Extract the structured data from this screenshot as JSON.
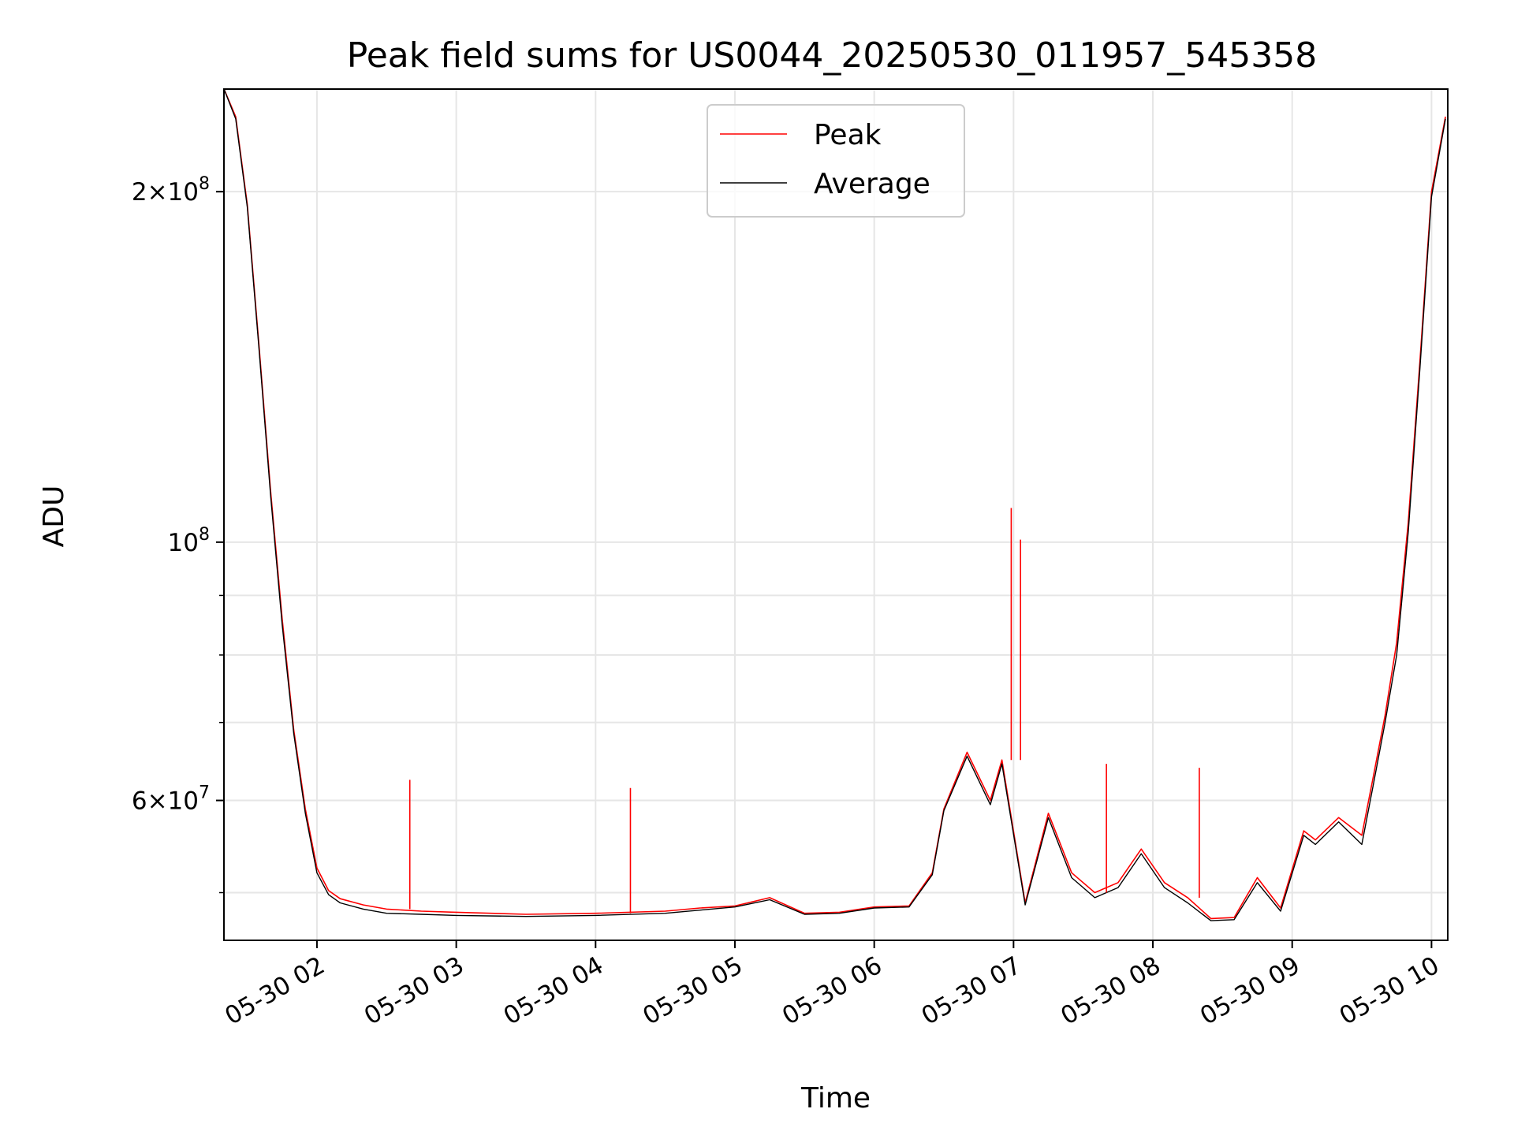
{
  "chart_data": {
    "type": "line",
    "title": "Peak field sums for US0044_20250530_011957_545358",
    "xlabel": "Time",
    "ylabel": "ADU",
    "y_scale": "log",
    "ylim": [
      45500000,
      245000000
    ],
    "xlim": [
      "05-30 01:19:57",
      "05-30 10:07:00"
    ],
    "grid": true,
    "legend_position": "top-center",
    "x_ticks": [
      {
        "time": "05-30 02:00",
        "label": "05-30 02"
      },
      {
        "time": "05-30 03:00",
        "label": "05-30 03"
      },
      {
        "time": "05-30 04:00",
        "label": "05-30 04"
      },
      {
        "time": "05-30 05:00",
        "label": "05-30 05"
      },
      {
        "time": "05-30 06:00",
        "label": "05-30 06"
      },
      {
        "time": "05-30 07:00",
        "label": "05-30 07"
      },
      {
        "time": "05-30 08:00",
        "label": "05-30 08"
      },
      {
        "time": "05-30 09:00",
        "label": "05-30 09"
      },
      {
        "time": "05-30 10:00",
        "label": "05-30 10"
      }
    ],
    "y_ticks_major": [
      {
        "value": 200000000,
        "mantissa": "2",
        "exponent": "8"
      },
      {
        "value": 100000000,
        "mantissa": "",
        "exponent": "8"
      },
      {
        "value": 60000000,
        "mantissa": "6",
        "exponent": "7"
      }
    ],
    "y_ticks_minor": [
      50000000,
      70000000,
      80000000,
      90000000
    ],
    "series": [
      {
        "name": "Peak",
        "color": "#ff0000",
        "x": [
          "05-30 01:20",
          "05-30 01:25",
          "05-30 01:30",
          "05-30 01:35",
          "05-30 01:40",
          "05-30 01:45",
          "05-30 01:50",
          "05-30 01:55",
          "05-30 02:00",
          "05-30 02:05",
          "05-30 02:10",
          "05-30 02:20",
          "05-30 02:30",
          "05-30 02:45",
          "05-30 03:00",
          "05-30 03:30",
          "05-30 04:00",
          "05-30 04:30",
          "05-30 04:45",
          "05-30 05:00",
          "05-30 05:15",
          "05-30 05:30",
          "05-30 05:45",
          "05-30 06:00",
          "05-30 06:15",
          "05-30 06:25",
          "05-30 06:30",
          "05-30 06:40",
          "05-30 06:50",
          "05-30 06:55",
          "05-30 07:05",
          "05-30 07:15",
          "05-30 07:25",
          "05-30 07:35",
          "05-30 07:45",
          "05-30 07:55",
          "05-30 08:05",
          "05-30 08:15",
          "05-30 08:25",
          "05-30 08:35",
          "05-30 08:45",
          "05-30 08:55",
          "05-30 09:05",
          "05-30 09:10",
          "05-30 09:20",
          "05-30 09:30",
          "05-30 09:35",
          "05-30 09:40",
          "05-30 09:45",
          "05-30 09:50",
          "05-30 09:55",
          "05-30 10:00",
          "05-30 10:06"
        ],
        "values": [
          245000000,
          232000000,
          195000000,
          148000000,
          111000000,
          86000000,
          69000000,
          59000000,
          52500000,
          50200000,
          49400000,
          48800000,
          48400000,
          48200000,
          48100000,
          47900000,
          48000000,
          48200000,
          48500000,
          48700000,
          49500000,
          48000000,
          48100000,
          48600000,
          48700000,
          52000000,
          59000000,
          66000000,
          60000000,
          65000000,
          49000000,
          58500000,
          52000000,
          50000000,
          51000000,
          54500000,
          51000000,
          49500000,
          47500000,
          47600000,
          51500000,
          48500000,
          56500000,
          55500000,
          58000000,
          56000000,
          63000000,
          71000000,
          82000000,
          104000000,
          143000000,
          200000000,
          232000000
        ]
      },
      {
        "name": "Average",
        "color": "#000000",
        "x": [
          "05-30 01:20",
          "05-30 01:25",
          "05-30 01:30",
          "05-30 01:35",
          "05-30 01:40",
          "05-30 01:45",
          "05-30 01:50",
          "05-30 01:55",
          "05-30 02:00",
          "05-30 02:05",
          "05-30 02:10",
          "05-30 02:20",
          "05-30 02:30",
          "05-30 02:45",
          "05-30 03:00",
          "05-30 03:30",
          "05-30 04:00",
          "05-30 04:30",
          "05-30 04:45",
          "05-30 05:00",
          "05-30 05:15",
          "05-30 05:30",
          "05-30 05:45",
          "05-30 06:00",
          "05-30 06:15",
          "05-30 06:25",
          "05-30 06:30",
          "05-30 06:40",
          "05-30 06:50",
          "05-30 06:55",
          "05-30 07:05",
          "05-30 07:15",
          "05-30 07:25",
          "05-30 07:35",
          "05-30 07:45",
          "05-30 07:55",
          "05-30 08:05",
          "05-30 08:15",
          "05-30 08:25",
          "05-30 08:35",
          "05-30 08:45",
          "05-30 08:55",
          "05-30 09:05",
          "05-30 09:10",
          "05-30 09:20",
          "05-30 09:30",
          "05-30 09:35",
          "05-30 09:40",
          "05-30 09:45",
          "05-30 09:50",
          "05-30 09:55",
          "05-30 10:00",
          "05-30 10:06"
        ],
        "values": [
          245000000,
          231000000,
          194000000,
          147000000,
          110000000,
          85000000,
          68500000,
          58500000,
          52000000,
          49800000,
          49000000,
          48400000,
          48000000,
          47900000,
          47800000,
          47700000,
          47800000,
          48000000,
          48300000,
          48600000,
          49300000,
          47900000,
          48000000,
          48500000,
          48600000,
          51800000,
          58800000,
          65500000,
          59500000,
          64500000,
          48800000,
          58000000,
          51500000,
          49500000,
          50500000,
          54000000,
          50500000,
          49000000,
          47300000,
          47400000,
          51000000,
          48200000,
          56000000,
          55000000,
          57500000,
          55000000,
          62000000,
          70000000,
          80000000,
          102000000,
          141000000,
          198000000,
          231000000
        ]
      }
    ],
    "annotations": [
      {
        "series": "Peak",
        "time": "05-30 06:59",
        "value": 107000000,
        "note": "spike"
      },
      {
        "series": "Peak",
        "time": "05-30 07:03",
        "value": 100500000,
        "note": "spike"
      },
      {
        "series": "Peak",
        "time": "05-30 07:40",
        "value": 64500000,
        "note": "spike"
      },
      {
        "series": "Peak",
        "time": "05-30 08:20",
        "value": 64000000,
        "note": "spike"
      },
      {
        "series": "Peak",
        "time": "05-30 04:15",
        "value": 61500000,
        "note": "spike"
      },
      {
        "series": "Peak",
        "time": "05-30 02:40",
        "value": 62500000,
        "note": "spike"
      }
    ]
  }
}
